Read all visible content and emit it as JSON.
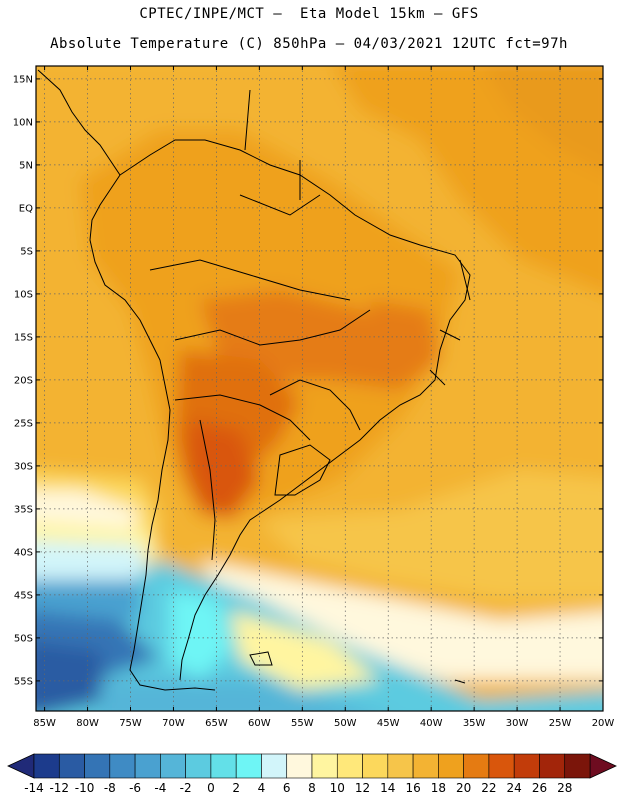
{
  "header": {
    "line1": "CPTEC/INPE/MCT –  Eta Model 15km – GFS",
    "line2": "Absolute Temperature (C) 850hPa – 04/03/2021 12UTC fct=97h"
  },
  "map": {
    "region": "South America",
    "lat_labels": [
      "15N",
      "10N",
      "5N",
      "EQ",
      "5S",
      "10S",
      "15S",
      "20S",
      "25S",
      "30S",
      "35S",
      "40S",
      "45S",
      "50S",
      "55S"
    ],
    "lon_labels": [
      "85W",
      "80W",
      "75W",
      "70W",
      "65W",
      "60W",
      "55W",
      "50W",
      "45W",
      "40W",
      "35W",
      "30W",
      "25W",
      "20W"
    ],
    "lat_values": [
      15,
      10,
      5,
      0,
      -5,
      -10,
      -15,
      -20,
      -25,
      -30,
      -35,
      -40,
      -45,
      -50,
      -55
    ],
    "lon_values": [
      -85,
      -80,
      -75,
      -70,
      -65,
      -60,
      -55,
      -50,
      -45,
      -40,
      -35,
      -30,
      -25,
      -20
    ],
    "lat_range": [
      -58.5,
      16.5
    ],
    "lon_range": [
      -86,
      -20
    ]
  },
  "colorbar": {
    "ticks": [
      "-14",
      "-12",
      "-10",
      "-8",
      "-6",
      "-4",
      "-2",
      "0",
      "2",
      "4",
      "6",
      "8",
      "10",
      "12",
      "14",
      "16",
      "18",
      "20",
      "22",
      "24",
      "26",
      "28"
    ],
    "colors": [
      "#1c3b8c",
      "#2a5ba3",
      "#3474b5",
      "#3f8bc4",
      "#4aa1d0",
      "#55b5d8",
      "#5ccbe0",
      "#63e0e8",
      "#6ef5f5",
      "#d2f5fa",
      "#fff8dd",
      "#fff5a0",
      "#ffe87a",
      "#fcd85c",
      "#f6c54a",
      "#f3b333",
      "#efa11e",
      "#e57b12",
      "#d9560c",
      "#c23c0a",
      "#a2250a",
      "#7b150a"
    ],
    "under_color": "#202a78",
    "over_color": "#6e0c20"
  }
}
